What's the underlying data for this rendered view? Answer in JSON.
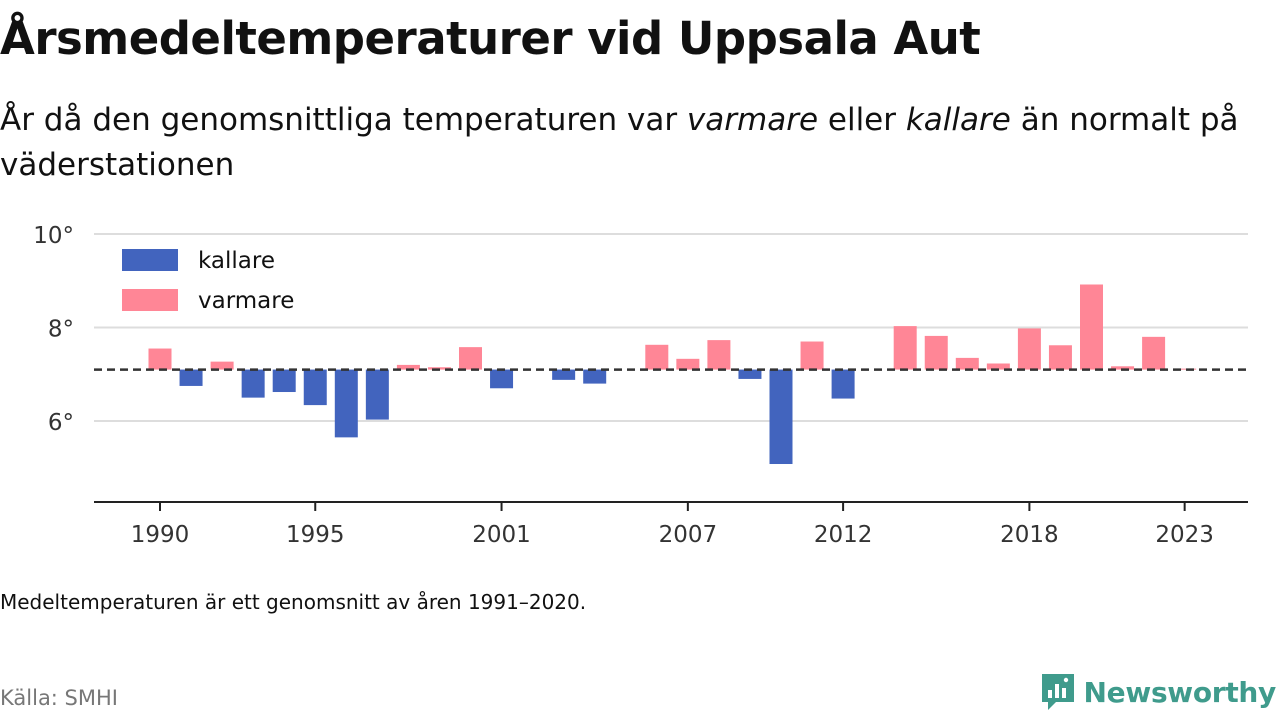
{
  "title": "Årsmedeltemperaturer vid Uppsala Aut",
  "subtitle": {
    "part1": "År då den genomsnittliga temperaturen var ",
    "warm_word": "varmare",
    "part2": " eller ",
    "cold_word": "kallare",
    "part3": " än normalt på väderstationen"
  },
  "note": "Medeltemperaturen är ett genomsnitt av åren 1991–2020.",
  "source": "Källa: SMHI",
  "brand": {
    "name": "Newsworthy",
    "icon": "bar-chart-speech-bubble-icon"
  },
  "colors": {
    "cold": "#4264be",
    "warm": "#ff8696",
    "brand": "#3f9b8c"
  },
  "chart_data": {
    "type": "bar",
    "baseline": 7.1,
    "baseline_style": "dashed",
    "ylim": [
      4.7,
      10
    ],
    "yticks": [
      6,
      8,
      10
    ],
    "ytick_labels": [
      "6°",
      "8°",
      "10°"
    ],
    "xticks": [
      1990,
      1995,
      2001,
      2007,
      2012,
      2018,
      2023
    ],
    "xtick_labels": [
      "1990",
      "1995",
      "2001",
      "2007",
      "2012",
      "2018",
      "2023"
    ],
    "grid": true,
    "legend": {
      "placement": "top-left",
      "items": [
        {
          "label": "kallare",
          "color": "#4264be"
        },
        {
          "label": "varmare",
          "color": "#ff8696"
        }
      ]
    },
    "years": [
      1990,
      1991,
      1992,
      1993,
      1994,
      1995,
      1996,
      1997,
      1998,
      1999,
      2000,
      2001,
      2002,
      2003,
      2004,
      2005,
      2006,
      2007,
      2008,
      2009,
      2010,
      2011,
      2012,
      2013,
      2014,
      2015,
      2016,
      2017,
      2018,
      2019,
      2020,
      2021,
      2022,
      2023
    ],
    "values": [
      7.55,
      6.75,
      7.27,
      6.5,
      6.62,
      6.34,
      5.65,
      6.03,
      7.2,
      7.15,
      7.58,
      6.7,
      null,
      6.88,
      6.8,
      null,
      7.63,
      7.33,
      7.73,
      6.9,
      5.08,
      7.7,
      6.48,
      null,
      8.03,
      7.82,
      7.35,
      7.23,
      7.98,
      7.62,
      8.92,
      7.17,
      7.8,
      7.12
    ]
  }
}
